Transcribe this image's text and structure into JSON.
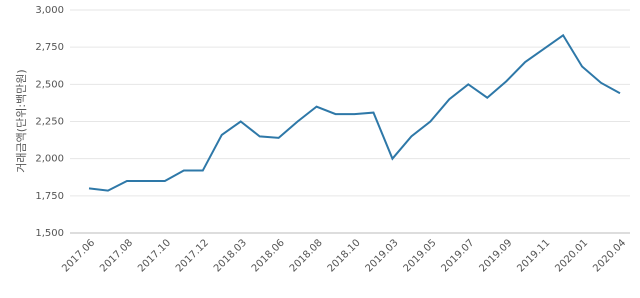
{
  "chart_data": {
    "type": "line",
    "y_label": "거래금액(단위:백만원)",
    "categories": [
      "2017.06",
      null,
      "2017.08",
      null,
      "2017.10",
      null,
      "2017.12",
      null,
      "2018.03",
      null,
      "2018.06",
      null,
      "2018.08",
      null,
      "2018.10",
      null,
      "2019.03",
      null,
      "2019.05",
      null,
      "2019.07",
      null,
      "2019.09",
      null,
      "2019.11",
      null,
      "2020.01",
      null,
      "2020.04"
    ],
    "series": [
      {
        "color": "#2e78a8",
        "values": [
          1800,
          1785,
          1850,
          1850,
          1850,
          1920,
          1920,
          2160,
          2250,
          2150,
          2140,
          2250,
          2350,
          2300,
          2300,
          2310,
          2000,
          2150,
          2250,
          2400,
          2500,
          2410,
          2520,
          2650,
          2740,
          2830,
          2620,
          2510,
          2440
        ]
      }
    ],
    "ylim": [
      1500,
      3000
    ],
    "yticks": [
      {
        "value": 1500,
        "label": "1,500"
      },
      {
        "value": 1750,
        "label": "1,750"
      },
      {
        "value": 2000,
        "label": "2,000"
      },
      {
        "value": 2250,
        "label": "2,250"
      },
      {
        "value": 2500,
        "label": "2,500"
      },
      {
        "value": 2750,
        "label": "2,750"
      },
      {
        "value": 3000,
        "label": "3,000"
      }
    ],
    "grid": true
  }
}
